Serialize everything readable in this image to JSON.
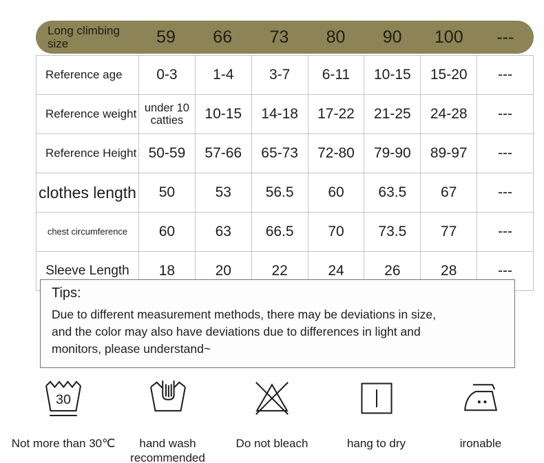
{
  "chart_data": {
    "type": "table",
    "header_label": "Long climbing size",
    "columns": [
      "59",
      "66",
      "73",
      "80",
      "90",
      "100",
      "---"
    ],
    "rows": [
      {
        "label": "Reference age",
        "values": [
          "0-3",
          "1-4",
          "3-7",
          "6-11",
          "10-15",
          "15-20",
          "---"
        ]
      },
      {
        "label": "Reference weight",
        "values": [
          "under 10 catties",
          "10-15",
          "14-18",
          "17-22",
          "21-25",
          "24-28",
          "---"
        ]
      },
      {
        "label": "Reference Height",
        "values": [
          "50-59",
          "57-66",
          "65-73",
          "72-80",
          "79-90",
          "89-97",
          "---"
        ]
      },
      {
        "label": "clothes length",
        "values": [
          "50",
          "53",
          "56.5",
          "60",
          "63.5",
          "67",
          "---"
        ]
      },
      {
        "label": "chest circumference",
        "values": [
          "60",
          "63",
          "66.5",
          "70",
          "73.5",
          "77",
          "---"
        ]
      },
      {
        "label": "Sleeve Length",
        "values": [
          "18",
          "20",
          "22",
          "24",
          "26",
          "28",
          "---"
        ]
      }
    ]
  },
  "tips": {
    "title": "Tips:",
    "body": "Due to different measurement methods, there may be deviations in size,\nand the color may also have deviations due to differences in light and\nmonitors, please understand~"
  },
  "care": {
    "wash_temp": "30",
    "items": [
      {
        "icon": "wash-30-icon",
        "label": "Not more than 30℃"
      },
      {
        "icon": "hand-wash-icon",
        "label": "hand wash\nrecommended"
      },
      {
        "icon": "do-not-bleach-icon",
        "label": "Do not bleach"
      },
      {
        "icon": "hang-to-dry-icon",
        "label": "hang to dry"
      },
      {
        "icon": "iron-icon",
        "label": "ironable"
      }
    ]
  },
  "colors": {
    "header_bg": "#8c8356",
    "cell_border": "#c3c3c3",
    "tips_border": "#757575",
    "text": "#1d1d1d"
  }
}
